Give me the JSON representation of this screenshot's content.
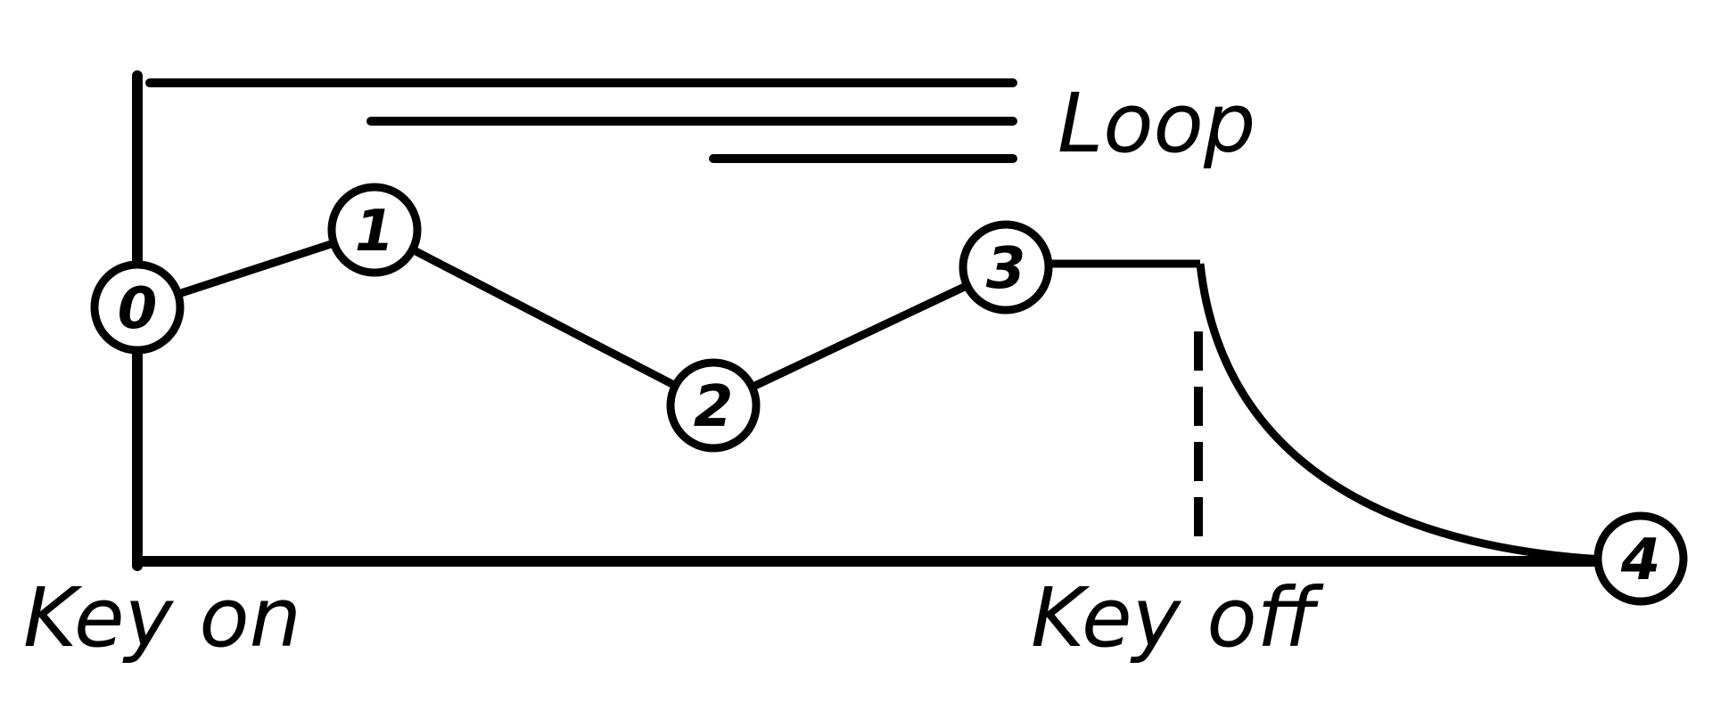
{
  "diagram": {
    "labels": {
      "loop": "Loop",
      "key_on": "Key on",
      "key_off": "Key off"
    },
    "nodes": [
      {
        "id": "0",
        "label": "0"
      },
      {
        "id": "1",
        "label": "1"
      },
      {
        "id": "2",
        "label": "2"
      },
      {
        "id": "3",
        "label": "3"
      },
      {
        "id": "4",
        "label": "4"
      }
    ],
    "colors": {
      "ink": "#000000",
      "paper": "#ffffff"
    }
  }
}
